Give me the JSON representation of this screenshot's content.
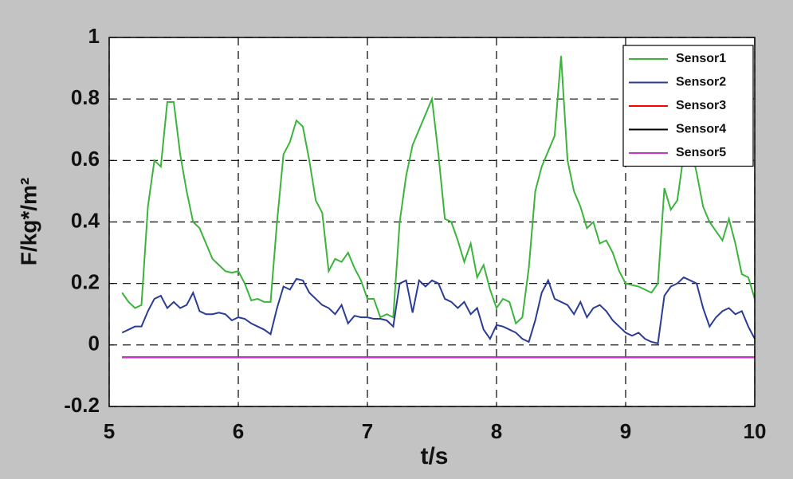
{
  "chart_data": {
    "type": "line",
    "xlabel": "t/s",
    "ylabel": "F/kg*/m²",
    "xlim": [
      5,
      10
    ],
    "ylim": [
      -0.2,
      1
    ],
    "xticks": [
      5,
      6,
      7,
      8,
      9,
      10
    ],
    "yticks": [
      -0.2,
      0,
      0.2,
      0.4,
      0.6,
      0.8,
      1
    ],
    "grid": true,
    "legend": "upper right",
    "x": [
      5.1,
      5.15,
      5.2,
      5.25,
      5.3,
      5.35,
      5.4,
      5.45,
      5.5,
      5.55,
      5.6,
      5.65,
      5.7,
      5.75,
      5.8,
      5.85,
      5.9,
      5.95,
      6,
      6.05,
      6.1,
      6.15,
      6.2,
      6.25,
      6.3,
      6.35,
      6.4,
      6.45,
      6.5,
      6.55,
      6.6,
      6.65,
      6.7,
      6.75,
      6.8,
      6.85,
      6.9,
      6.95,
      7,
      7.05,
      7.1,
      7.15,
      7.2,
      7.25,
      7.3,
      7.35,
      7.4,
      7.45,
      7.5,
      7.55,
      7.6,
      7.65,
      7.7,
      7.75,
      7.8,
      7.85,
      7.9,
      7.95,
      8,
      8.05,
      8.1,
      8.15,
      8.2,
      8.25,
      8.3,
      8.35,
      8.4,
      8.45,
      8.5,
      8.55,
      8.6,
      8.65,
      8.7,
      8.75,
      8.8,
      8.85,
      8.9,
      8.95,
      9,
      9.05,
      9.1,
      9.15,
      9.2,
      9.25,
      9.3,
      9.35,
      9.4,
      9.45,
      9.5,
      9.55,
      9.6,
      9.65,
      9.7,
      9.75,
      9.8,
      9.85,
      9.9,
      9.95,
      10
    ],
    "series": [
      {
        "name": "Sensor1",
        "color": "#3cb43c",
        "values": [
          0.17,
          0.14,
          0.12,
          0.13,
          0.45,
          0.6,
          0.58,
          0.79,
          0.79,
          0.62,
          0.5,
          0.4,
          0.38,
          0.33,
          0.28,
          0.26,
          0.24,
          0.235,
          0.24,
          0.2,
          0.145,
          0.15,
          0.14,
          0.14,
          0.4,
          0.62,
          0.66,
          0.73,
          0.71,
          0.6,
          0.47,
          0.43,
          0.24,
          0.28,
          0.27,
          0.3,
          0.25,
          0.21,
          0.15,
          0.15,
          0.09,
          0.1,
          0.09,
          0.4,
          0.55,
          0.65,
          0.7,
          0.75,
          0.8,
          0.62,
          0.41,
          0.4,
          0.34,
          0.27,
          0.33,
          0.22,
          0.26,
          0.18,
          0.12,
          0.15,
          0.14,
          0.07,
          0.09,
          0.25,
          0.5,
          0.58,
          0.63,
          0.68,
          0.94,
          0.6,
          0.5,
          0.45,
          0.38,
          0.4,
          0.33,
          0.34,
          0.3,
          0.24,
          0.2,
          0.195,
          0.19,
          0.18,
          0.17,
          0.2,
          0.51,
          0.44,
          0.47,
          0.62,
          0.65,
          0.56,
          0.45,
          0.4,
          0.37,
          0.34,
          0.41,
          0.33,
          0.23,
          0.22,
          0.15
        ]
      },
      {
        "name": "Sensor2",
        "color": "#2a3c96",
        "values": [
          0.04,
          0.05,
          0.06,
          0.06,
          0.11,
          0.15,
          0.16,
          0.12,
          0.14,
          0.12,
          0.13,
          0.17,
          0.11,
          0.1,
          0.1,
          0.105,
          0.1,
          0.08,
          0.09,
          0.085,
          0.07,
          0.06,
          0.05,
          0.035,
          0.12,
          0.19,
          0.18,
          0.215,
          0.21,
          0.17,
          0.15,
          0.13,
          0.12,
          0.1,
          0.13,
          0.07,
          0.095,
          0.09,
          0.09,
          0.085,
          0.085,
          0.08,
          0.06,
          0.2,
          0.21,
          0.105,
          0.21,
          0.19,
          0.21,
          0.2,
          0.15,
          0.14,
          0.12,
          0.14,
          0.1,
          0.12,
          0.05,
          0.02,
          0.065,
          0.06,
          0.05,
          0.04,
          0.02,
          0.01,
          0.08,
          0.17,
          0.21,
          0.15,
          0.14,
          0.13,
          0.1,
          0.14,
          0.09,
          0.12,
          0.13,
          0.11,
          0.08,
          0.06,
          0.04,
          0.03,
          0.04,
          0.02,
          0.01,
          0.005,
          0.16,
          0.19,
          0.2,
          0.22,
          0.21,
          0.2,
          0.12,
          0.06,
          0.09,
          0.11,
          0.12,
          0.1,
          0.11,
          0.06,
          0.02
        ]
      },
      {
        "name": "Sensor3",
        "color": "#ff0000",
        "values": [
          -0.04,
          -0.04,
          -0.04,
          -0.04,
          -0.04,
          -0.04,
          -0.04,
          -0.04,
          -0.04,
          -0.04,
          -0.04,
          -0.04,
          -0.04,
          -0.04,
          -0.04,
          -0.04,
          -0.04,
          -0.04,
          -0.04,
          -0.04,
          -0.04,
          -0.04,
          -0.04,
          -0.04,
          -0.04,
          -0.04,
          -0.04,
          -0.04,
          -0.04,
          -0.04,
          -0.04,
          -0.04,
          -0.04,
          -0.04,
          -0.04,
          -0.04,
          -0.04,
          -0.04,
          -0.04,
          -0.04,
          -0.04,
          -0.04,
          -0.04,
          -0.04,
          -0.04,
          -0.04,
          -0.04,
          -0.04,
          -0.04,
          -0.04,
          -0.04,
          -0.04,
          -0.04,
          -0.04,
          -0.04,
          -0.04,
          -0.04,
          -0.04,
          -0.04,
          -0.04,
          -0.04,
          -0.04,
          -0.04,
          -0.04,
          -0.04,
          -0.04,
          -0.04,
          -0.04,
          -0.04,
          -0.04,
          -0.04,
          -0.04,
          -0.04,
          -0.04,
          -0.04,
          -0.04,
          -0.04,
          -0.04,
          -0.04,
          -0.04,
          -0.04,
          -0.04,
          -0.04,
          -0.04,
          -0.04,
          -0.04,
          -0.04,
          -0.04,
          -0.04,
          -0.04,
          -0.04,
          -0.04,
          -0.04,
          -0.04,
          -0.04,
          -0.04,
          -0.04,
          -0.04,
          -0.04
        ]
      },
      {
        "name": "Sensor4",
        "color": "#000000",
        "values": [
          -0.04,
          -0.04,
          -0.04,
          -0.04,
          -0.04,
          -0.04,
          -0.04,
          -0.04,
          -0.04,
          -0.04,
          -0.04,
          -0.04,
          -0.04,
          -0.04,
          -0.04,
          -0.04,
          -0.04,
          -0.04,
          -0.04,
          -0.04,
          -0.04,
          -0.04,
          -0.04,
          -0.04,
          -0.04,
          -0.04,
          -0.04,
          -0.04,
          -0.04,
          -0.04,
          -0.04,
          -0.04,
          -0.04,
          -0.04,
          -0.04,
          -0.04,
          -0.04,
          -0.04,
          -0.04,
          -0.04,
          -0.04,
          -0.04,
          -0.04,
          -0.04,
          -0.04,
          -0.04,
          -0.04,
          -0.04,
          -0.04,
          -0.04,
          -0.04,
          -0.04,
          -0.04,
          -0.04,
          -0.04,
          -0.04,
          -0.04,
          -0.04,
          -0.04,
          -0.04,
          -0.04,
          -0.04,
          -0.04,
          -0.04,
          -0.04,
          -0.04,
          -0.04,
          -0.04,
          -0.04,
          -0.04,
          -0.04,
          -0.04,
          -0.04,
          -0.04,
          -0.04,
          -0.04,
          -0.04,
          -0.04,
          -0.04,
          -0.04,
          -0.04,
          -0.04,
          -0.04,
          -0.04,
          -0.04,
          -0.04,
          -0.04,
          -0.04,
          -0.04,
          -0.04,
          -0.04,
          -0.04,
          -0.04,
          -0.04,
          -0.04,
          -0.04,
          -0.04,
          -0.04,
          -0.04
        ]
      },
      {
        "name": "Sensor5",
        "color": "#cc33cc",
        "values": [
          -0.04,
          -0.04,
          -0.04,
          -0.04,
          -0.04,
          -0.04,
          -0.04,
          -0.04,
          -0.04,
          -0.04,
          -0.04,
          -0.04,
          -0.04,
          -0.04,
          -0.04,
          -0.04,
          -0.04,
          -0.04,
          -0.04,
          -0.04,
          -0.04,
          -0.04,
          -0.04,
          -0.04,
          -0.04,
          -0.04,
          -0.04,
          -0.04,
          -0.04,
          -0.04,
          -0.04,
          -0.04,
          -0.04,
          -0.04,
          -0.04,
          -0.04,
          -0.04,
          -0.04,
          -0.04,
          -0.04,
          -0.04,
          -0.04,
          -0.04,
          -0.04,
          -0.04,
          -0.04,
          -0.04,
          -0.04,
          -0.04,
          -0.04,
          -0.04,
          -0.04,
          -0.04,
          -0.04,
          -0.04,
          -0.04,
          -0.04,
          -0.04,
          -0.04,
          -0.04,
          -0.04,
          -0.04,
          -0.04,
          -0.04,
          -0.04,
          -0.04,
          -0.04,
          -0.04,
          -0.04,
          -0.04,
          -0.04,
          -0.04,
          -0.04,
          -0.04,
          -0.04,
          -0.04,
          -0.04,
          -0.04,
          -0.04,
          -0.04,
          -0.04,
          -0.04,
          -0.04,
          -0.04,
          -0.04,
          -0.04,
          -0.04,
          -0.04,
          -0.04,
          -0.04,
          -0.04,
          -0.04,
          -0.04,
          -0.04,
          -0.04,
          -0.04,
          -0.04,
          -0.04,
          -0.04
        ]
      }
    ]
  }
}
